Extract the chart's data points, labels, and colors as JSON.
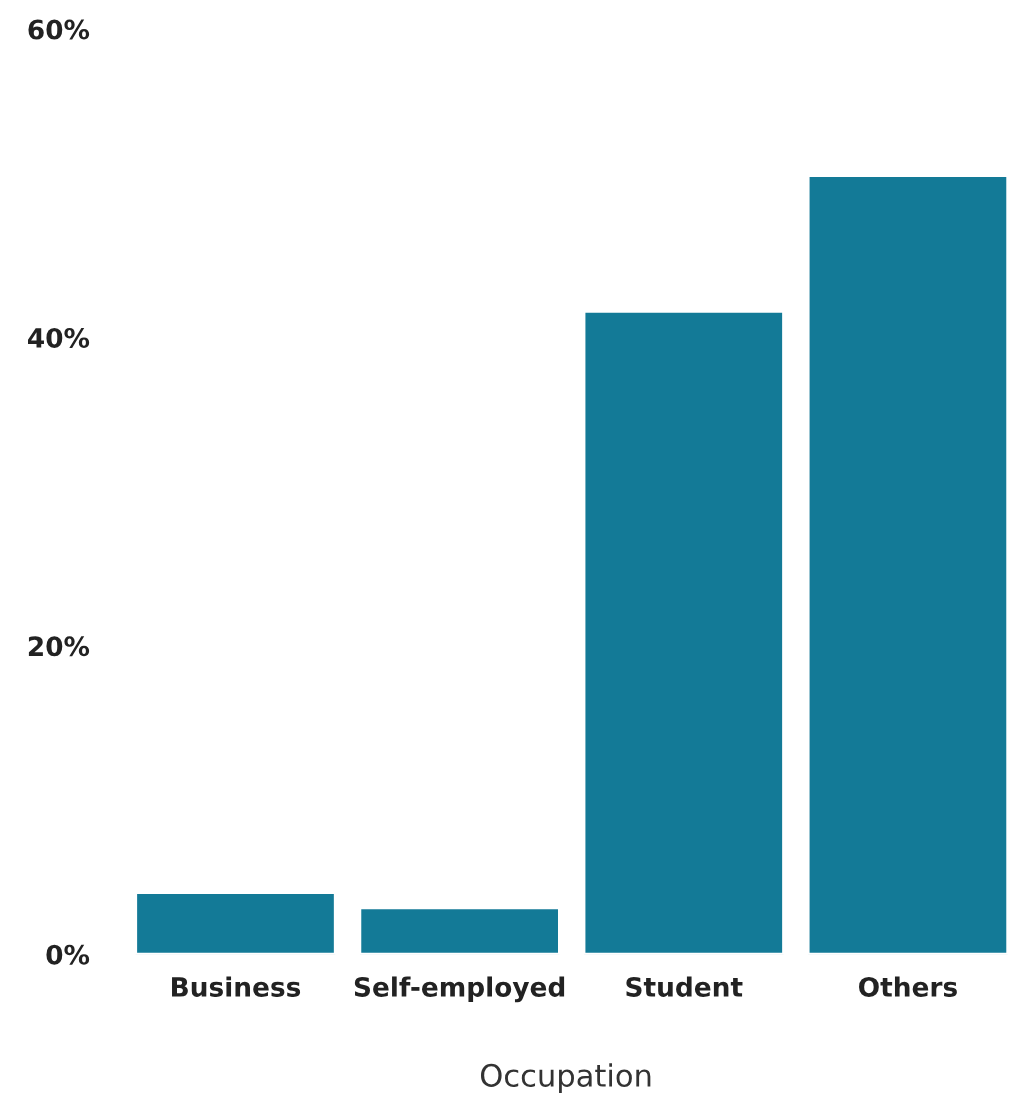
{
  "chart_data": {
    "type": "bar",
    "xlabel": "Occupation",
    "categories": [
      "Business",
      "Self-employed",
      "Student",
      "Others"
    ],
    "values": [
      4,
      3,
      41.7,
      50.5
    ],
    "color": "#137a97",
    "ylim": [
      0,
      60
    ],
    "yticks": [
      {
        "value": 0,
        "label": "0%"
      },
      {
        "value": 20,
        "label": "20%"
      },
      {
        "value": 40,
        "label": "40%"
      },
      {
        "value": 60,
        "label": "60%"
      }
    ],
    "grid": false,
    "legend": false
  }
}
